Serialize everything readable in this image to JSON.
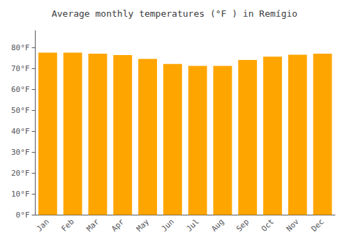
{
  "chart_data": {
    "type": "bar",
    "title": "Average monthly temperatures (°F ) in Remígio",
    "categories": [
      "Jan",
      "Feb",
      "Mar",
      "Apr",
      "May",
      "Jun",
      "Jul",
      "Aug",
      "Sep",
      "Oct",
      "Nov",
      "Dec"
    ],
    "values": [
      77.5,
      77.5,
      77.0,
      76.3,
      74.5,
      72.1,
      71.2,
      71.2,
      74.0,
      75.6,
      76.5,
      77.0
    ],
    "color": "#FFA500",
    "ylim": [
      0,
      88
    ],
    "yticks": [
      {
        "value": 0,
        "label": "0°F"
      },
      {
        "value": 10,
        "label": "10°F"
      },
      {
        "value": 20,
        "label": "20°F"
      },
      {
        "value": 30,
        "label": "30°F"
      },
      {
        "value": 40,
        "label": "40°F"
      },
      {
        "value": 50,
        "label": "50°F"
      },
      {
        "value": 60,
        "label": "60°F"
      },
      {
        "value": 70,
        "label": "70°F"
      },
      {
        "value": 80,
        "label": "80°F"
      }
    ],
    "grid": false
  }
}
